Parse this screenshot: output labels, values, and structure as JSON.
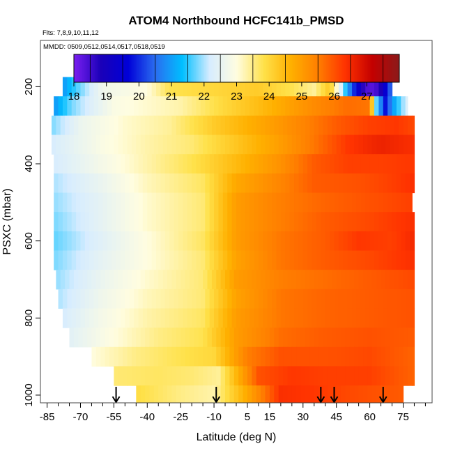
{
  "chart_data": {
    "type": "heatmap",
    "title": "ATOM4 Northbound HCFC141b_PMSD",
    "flights_note": "Flts: 7,8,9,10,11,12",
    "dates_note": "MMDD: 0509,0512,0514,0517,0518,0519",
    "xlabel": "Latitude (deg N)",
    "ylabel": "PSXC (mbar)",
    "xlim": [
      -88,
      88
    ],
    "ylim": [
      1020,
      80
    ],
    "y_reversed": true,
    "x_ticks": [
      -85,
      -70,
      -55,
      -40,
      -25,
      -10,
      5,
      15,
      30,
      45,
      60,
      75
    ],
    "y_ticks": [
      200,
      400,
      600,
      800,
      1000
    ],
    "colorbar": {
      "min": 18,
      "max": 28,
      "ticks": [
        18,
        19,
        20,
        21,
        22,
        23,
        24,
        25,
        26,
        27
      ],
      "colors": [
        "#7b1ff0",
        "#1a00b8",
        "#0000d8",
        "#2a6df0",
        "#00bfff",
        "#d6ecff",
        "#fffde0",
        "#ffe14a",
        "#ffb000",
        "#ff7f00",
        "#ff3300",
        "#c40000",
        "#8b1a1a"
      ]
    },
    "levels": [
      {
        "p": 200,
        "lat_min": -78,
        "lat_max": 70,
        "stops": [
          [
            -78,
            20.9
          ],
          [
            -72,
            21.6
          ],
          [
            -60,
            22.7
          ],
          [
            -40,
            23.0
          ],
          [
            -30,
            23.8
          ],
          [
            -10,
            24.0
          ],
          [
            10,
            24.2
          ],
          [
            25,
            23.8
          ],
          [
            35,
            23.4
          ],
          [
            42,
            24.3
          ],
          [
            52,
            20.3
          ],
          [
            58,
            18.4
          ],
          [
            62,
            18.3
          ],
          [
            66,
            19.0
          ],
          [
            70,
            20.8
          ]
        ]
      },
      {
        "p": 250,
        "lat_min": -82,
        "lat_max": 77,
        "stops": [
          [
            -82,
            20.9
          ],
          [
            -74,
            21.8
          ],
          [
            -55,
            22.9
          ],
          [
            -25,
            23.3
          ],
          [
            -5,
            24.0
          ],
          [
            15,
            24.6
          ],
          [
            35,
            25.3
          ],
          [
            50,
            25.7
          ],
          [
            60,
            25.6
          ],
          [
            63,
            21.7
          ],
          [
            67,
            19.8
          ],
          [
            70,
            20.9
          ],
          [
            77,
            22.4
          ]
        ]
      },
      {
        "p": 300,
        "lat_min": -83,
        "lat_max": 80,
        "stops": [
          [
            -83,
            21.8
          ],
          [
            -70,
            22.6
          ],
          [
            -50,
            23.1
          ],
          [
            -30,
            23.4
          ],
          [
            -10,
            24.2
          ],
          [
            10,
            24.8
          ],
          [
            30,
            25.4
          ],
          [
            45,
            25.9
          ],
          [
            60,
            26.2
          ],
          [
            72,
            26.3
          ],
          [
            80,
            26.1
          ]
        ]
      },
      {
        "p": 350,
        "lat_min": -83,
        "lat_max": 80,
        "stops": [
          [
            -83,
            22.2
          ],
          [
            -60,
            22.9
          ],
          [
            -40,
            23.3
          ],
          [
            -20,
            23.6
          ],
          [
            0,
            24.3
          ],
          [
            20,
            25.0
          ],
          [
            35,
            25.6
          ],
          [
            50,
            26.3
          ],
          [
            65,
            26.6
          ],
          [
            80,
            26.4
          ]
        ]
      },
      {
        "p": 400,
        "lat_min": -82,
        "lat_max": 80,
        "stops": [
          [
            -82,
            22.2
          ],
          [
            -60,
            22.8
          ],
          [
            -40,
            23.3
          ],
          [
            -20,
            23.8
          ],
          [
            0,
            24.5
          ],
          [
            20,
            25.2
          ],
          [
            35,
            25.9
          ],
          [
            50,
            26.2
          ],
          [
            65,
            26.2
          ],
          [
            80,
            26.3
          ]
        ]
      },
      {
        "p": 450,
        "lat_min": -82,
        "lat_max": 80,
        "stops": [
          [
            -82,
            22.0
          ],
          [
            -60,
            22.6
          ],
          [
            -40,
            23.2
          ],
          [
            -15,
            23.7
          ],
          [
            0,
            24.8
          ],
          [
            20,
            25.4
          ],
          [
            35,
            25.9
          ],
          [
            55,
            26.0
          ],
          [
            70,
            26.2
          ],
          [
            80,
            26.4
          ]
        ]
      },
      {
        "p": 500,
        "lat_min": -82,
        "lat_max": 79,
        "stops": [
          [
            -82,
            21.9
          ],
          [
            -60,
            22.5
          ],
          [
            -40,
            23.1
          ],
          [
            -15,
            23.6
          ],
          [
            0,
            25.0
          ],
          [
            20,
            25.5
          ],
          [
            40,
            25.8
          ],
          [
            60,
            26.0
          ],
          [
            79,
            26.2
          ]
        ]
      },
      {
        "p": 550,
        "lat_min": -82,
        "lat_max": 80,
        "stops": [
          [
            -82,
            21.8
          ],
          [
            -60,
            22.5
          ],
          [
            -40,
            23.1
          ],
          [
            -15,
            23.6
          ],
          [
            0,
            25.0
          ],
          [
            20,
            25.5
          ],
          [
            40,
            25.9
          ],
          [
            60,
            26.1
          ],
          [
            80,
            26.4
          ]
        ]
      },
      {
        "p": 600,
        "lat_min": -82,
        "lat_max": 80,
        "stops": [
          [
            -82,
            21.7
          ],
          [
            -60,
            22.4
          ],
          [
            -40,
            23.0
          ],
          [
            -15,
            23.7
          ],
          [
            0,
            25.0
          ],
          [
            20,
            25.6
          ],
          [
            40,
            25.9
          ],
          [
            55,
            26.3
          ],
          [
            70,
            26.2
          ],
          [
            80,
            26.5
          ]
        ]
      },
      {
        "p": 650,
        "lat_min": -82,
        "lat_max": 80,
        "stops": [
          [
            -82,
            21.8
          ],
          [
            -60,
            22.5
          ],
          [
            -40,
            23.0
          ],
          [
            -15,
            23.6
          ],
          [
            0,
            24.9
          ],
          [
            20,
            25.6
          ],
          [
            40,
            25.9
          ],
          [
            60,
            26.1
          ],
          [
            80,
            26.4
          ]
        ]
      },
      {
        "p": 700,
        "lat_min": -81,
        "lat_max": 80,
        "stops": [
          [
            -81,
            21.9
          ],
          [
            -60,
            22.6
          ],
          [
            -40,
            23.1
          ],
          [
            -15,
            23.6
          ],
          [
            0,
            25.0
          ],
          [
            20,
            25.5
          ],
          [
            40,
            25.7
          ],
          [
            60,
            25.9
          ],
          [
            80,
            26.1
          ]
        ]
      },
      {
        "p": 750,
        "lat_min": -80,
        "lat_max": 80,
        "stops": [
          [
            -80,
            22.0
          ],
          [
            -60,
            22.7
          ],
          [
            -40,
            23.2
          ],
          [
            -15,
            23.6
          ],
          [
            0,
            24.9
          ],
          [
            20,
            25.6
          ],
          [
            40,
            25.8
          ],
          [
            60,
            25.9
          ],
          [
            80,
            26.0
          ]
        ]
      },
      {
        "p": 800,
        "lat_min": -78,
        "lat_max": 80,
        "stops": [
          [
            -78,
            22.2
          ],
          [
            -60,
            22.8
          ],
          [
            -40,
            23.3
          ],
          [
            -15,
            23.7
          ],
          [
            0,
            25.0
          ],
          [
            20,
            25.6
          ],
          [
            40,
            25.8
          ],
          [
            60,
            25.9
          ],
          [
            80,
            26.0
          ]
        ]
      },
      {
        "p": 850,
        "lat_min": -75,
        "lat_max": 80,
        "stops": [
          [
            -75,
            22.4
          ],
          [
            -55,
            23.0
          ],
          [
            -35,
            23.5
          ],
          [
            -15,
            23.8
          ],
          [
            0,
            25.0
          ],
          [
            20,
            25.7
          ],
          [
            40,
            25.9
          ],
          [
            60,
            26.0
          ],
          [
            80,
            25.9
          ]
        ]
      },
      {
        "p": 900,
        "lat_min": -65,
        "lat_max": 80,
        "stops": [
          [
            -65,
            23.0
          ],
          [
            -45,
            23.5
          ],
          [
            -25,
            23.8
          ],
          [
            -10,
            24.0
          ],
          [
            5,
            25.5
          ],
          [
            20,
            26.0
          ],
          [
            40,
            26.0
          ],
          [
            60,
            26.1
          ],
          [
            80,
            25.8
          ]
        ]
      },
      {
        "p": 950,
        "lat_min": -55,
        "lat_max": 80,
        "stops": [
          [
            -55,
            23.6
          ],
          [
            -35,
            23.7
          ],
          [
            -20,
            23.6
          ],
          [
            -8,
            23.4
          ],
          [
            10,
            26.0
          ],
          [
            25,
            26.3
          ],
          [
            40,
            26.2
          ],
          [
            60,
            26.2
          ],
          [
            80,
            25.8
          ]
        ]
      },
      {
        "p": 1000,
        "lat_min": -45,
        "lat_max": 75,
        "stops": [
          [
            -45,
            23.9
          ],
          [
            -25,
            23.5
          ],
          [
            -10,
            23.3
          ],
          [
            5,
            24.8
          ],
          [
            20,
            26.4
          ],
          [
            35,
            26.3
          ],
          [
            50,
            26.1
          ],
          [
            75,
            25.9
          ]
        ]
      }
    ],
    "arrows_lat": [
      -54,
      -9,
      38,
      44,
      66
    ]
  },
  "icons": [
    "down-arrow-icon"
  ]
}
